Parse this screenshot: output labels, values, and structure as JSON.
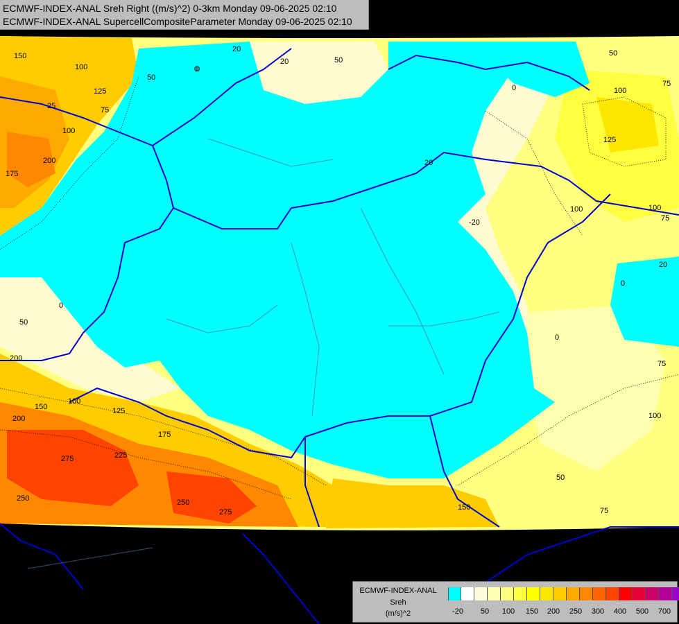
{
  "header": {
    "line1": "ECMWF-INDEX-ANAL Sreh Right ((m/s)^2) 0-3km Monday 09-06-2025 02:10",
    "line2": "ECMWF-INDEX-ANAL SupercellCompositeParameter Monday 09-06-2025 02:10"
  },
  "legend": {
    "title_lines": [
      "ECMWF-INDEX-ANAL",
      "Sreh",
      "(m/s)^2"
    ],
    "colors": [
      "#00ffff",
      "#ffffff",
      "#fffde0",
      "#ffffb0",
      "#ffff80",
      "#ffff40",
      "#ffff00",
      "#ffe600",
      "#ffcc00",
      "#ffaa00",
      "#ff8800",
      "#ff6600",
      "#ff4400",
      "#ff0000",
      "#e60033",
      "#cc0066",
      "#b30099",
      "#9900cc",
      "#7f00cc",
      "#6600cc",
      "#4d00b3",
      "#330099",
      "#1a0080"
    ],
    "tick_labels": [
      "-20",
      "50",
      "100",
      "150",
      "200",
      "250",
      "300",
      "400",
      "500",
      "700"
    ]
  },
  "contour_labels": [
    {
      "text": "150"
    },
    {
      "text": "100"
    },
    {
      "text": "125"
    },
    {
      "text": "75"
    },
    {
      "text": "100"
    },
    {
      "text": "200"
    },
    {
      "text": "175"
    },
    {
      "text": "20"
    },
    {
      "text": "50"
    },
    {
      "text": "0"
    },
    {
      "text": "20"
    },
    {
      "text": "50"
    },
    {
      "text": "0"
    },
    {
      "text": "50"
    },
    {
      "text": "100"
    },
    {
      "text": "125"
    },
    {
      "text": "75"
    },
    {
      "text": "100"
    },
    {
      "text": "75"
    },
    {
      "text": "100"
    },
    {
      "text": "20"
    },
    {
      "text": "0"
    },
    {
      "text": "20"
    },
    {
      "text": "-20"
    },
    {
      "text": "0"
    },
    {
      "text": "50"
    },
    {
      "text": "0"
    },
    {
      "text": "75"
    },
    {
      "text": "100"
    },
    {
      "text": "50"
    },
    {
      "text": "75"
    },
    {
      "text": "200"
    },
    {
      "text": "150"
    },
    {
      "text": "100"
    },
    {
      "text": "125"
    },
    {
      "text": "200"
    },
    {
      "text": "175"
    },
    {
      "text": "275"
    },
    {
      "text": "225"
    },
    {
      "text": "250"
    },
    {
      "text": "250"
    },
    {
      "text": "275"
    },
    {
      "text": "150"
    },
    {
      "text": "0"
    },
    {
      "text": "25"
    }
  ]
}
